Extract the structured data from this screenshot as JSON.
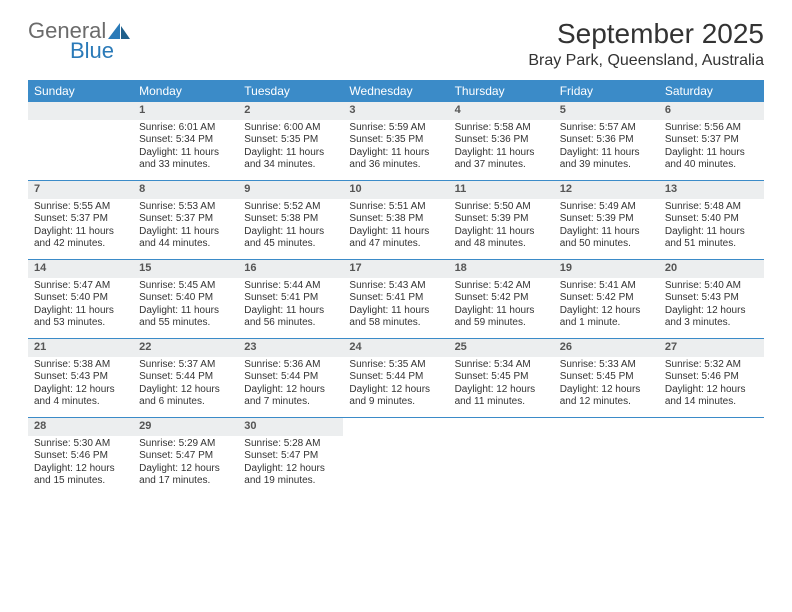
{
  "logo": {
    "main": "General",
    "sub": "Blue"
  },
  "title": "September 2025",
  "location": "Bray Park, Queensland, Australia",
  "colors": {
    "header_bg": "#3b8bc8",
    "header_text": "#ffffff",
    "num_bg": "#eceeef",
    "rule": "#3b8bc8",
    "logo_gray": "#6b6b6b",
    "logo_blue": "#2a7ab8"
  },
  "dayNames": [
    "Sunday",
    "Monday",
    "Tuesday",
    "Wednesday",
    "Thursday",
    "Friday",
    "Saturday"
  ],
  "weeks": [
    [
      {
        "n": "",
        "sr": "",
        "ss": "",
        "dl": ""
      },
      {
        "n": "1",
        "sr": "Sunrise: 6:01 AM",
        "ss": "Sunset: 5:34 PM",
        "dl": "Daylight: 11 hours and 33 minutes."
      },
      {
        "n": "2",
        "sr": "Sunrise: 6:00 AM",
        "ss": "Sunset: 5:35 PM",
        "dl": "Daylight: 11 hours and 34 minutes."
      },
      {
        "n": "3",
        "sr": "Sunrise: 5:59 AM",
        "ss": "Sunset: 5:35 PM",
        "dl": "Daylight: 11 hours and 36 minutes."
      },
      {
        "n": "4",
        "sr": "Sunrise: 5:58 AM",
        "ss": "Sunset: 5:36 PM",
        "dl": "Daylight: 11 hours and 37 minutes."
      },
      {
        "n": "5",
        "sr": "Sunrise: 5:57 AM",
        "ss": "Sunset: 5:36 PM",
        "dl": "Daylight: 11 hours and 39 minutes."
      },
      {
        "n": "6",
        "sr": "Sunrise: 5:56 AM",
        "ss": "Sunset: 5:37 PM",
        "dl": "Daylight: 11 hours and 40 minutes."
      }
    ],
    [
      {
        "n": "7",
        "sr": "Sunrise: 5:55 AM",
        "ss": "Sunset: 5:37 PM",
        "dl": "Daylight: 11 hours and 42 minutes."
      },
      {
        "n": "8",
        "sr": "Sunrise: 5:53 AM",
        "ss": "Sunset: 5:37 PM",
        "dl": "Daylight: 11 hours and 44 minutes."
      },
      {
        "n": "9",
        "sr": "Sunrise: 5:52 AM",
        "ss": "Sunset: 5:38 PM",
        "dl": "Daylight: 11 hours and 45 minutes."
      },
      {
        "n": "10",
        "sr": "Sunrise: 5:51 AM",
        "ss": "Sunset: 5:38 PM",
        "dl": "Daylight: 11 hours and 47 minutes."
      },
      {
        "n": "11",
        "sr": "Sunrise: 5:50 AM",
        "ss": "Sunset: 5:39 PM",
        "dl": "Daylight: 11 hours and 48 minutes."
      },
      {
        "n": "12",
        "sr": "Sunrise: 5:49 AM",
        "ss": "Sunset: 5:39 PM",
        "dl": "Daylight: 11 hours and 50 minutes."
      },
      {
        "n": "13",
        "sr": "Sunrise: 5:48 AM",
        "ss": "Sunset: 5:40 PM",
        "dl": "Daylight: 11 hours and 51 minutes."
      }
    ],
    [
      {
        "n": "14",
        "sr": "Sunrise: 5:47 AM",
        "ss": "Sunset: 5:40 PM",
        "dl": "Daylight: 11 hours and 53 minutes."
      },
      {
        "n": "15",
        "sr": "Sunrise: 5:45 AM",
        "ss": "Sunset: 5:40 PM",
        "dl": "Daylight: 11 hours and 55 minutes."
      },
      {
        "n": "16",
        "sr": "Sunrise: 5:44 AM",
        "ss": "Sunset: 5:41 PM",
        "dl": "Daylight: 11 hours and 56 minutes."
      },
      {
        "n": "17",
        "sr": "Sunrise: 5:43 AM",
        "ss": "Sunset: 5:41 PM",
        "dl": "Daylight: 11 hours and 58 minutes."
      },
      {
        "n": "18",
        "sr": "Sunrise: 5:42 AM",
        "ss": "Sunset: 5:42 PM",
        "dl": "Daylight: 11 hours and 59 minutes."
      },
      {
        "n": "19",
        "sr": "Sunrise: 5:41 AM",
        "ss": "Sunset: 5:42 PM",
        "dl": "Daylight: 12 hours and 1 minute."
      },
      {
        "n": "20",
        "sr": "Sunrise: 5:40 AM",
        "ss": "Sunset: 5:43 PM",
        "dl": "Daylight: 12 hours and 3 minutes."
      }
    ],
    [
      {
        "n": "21",
        "sr": "Sunrise: 5:38 AM",
        "ss": "Sunset: 5:43 PM",
        "dl": "Daylight: 12 hours and 4 minutes."
      },
      {
        "n": "22",
        "sr": "Sunrise: 5:37 AM",
        "ss": "Sunset: 5:44 PM",
        "dl": "Daylight: 12 hours and 6 minutes."
      },
      {
        "n": "23",
        "sr": "Sunrise: 5:36 AM",
        "ss": "Sunset: 5:44 PM",
        "dl": "Daylight: 12 hours and 7 minutes."
      },
      {
        "n": "24",
        "sr": "Sunrise: 5:35 AM",
        "ss": "Sunset: 5:44 PM",
        "dl": "Daylight: 12 hours and 9 minutes."
      },
      {
        "n": "25",
        "sr": "Sunrise: 5:34 AM",
        "ss": "Sunset: 5:45 PM",
        "dl": "Daylight: 12 hours and 11 minutes."
      },
      {
        "n": "26",
        "sr": "Sunrise: 5:33 AM",
        "ss": "Sunset: 5:45 PM",
        "dl": "Daylight: 12 hours and 12 minutes."
      },
      {
        "n": "27",
        "sr": "Sunrise: 5:32 AM",
        "ss": "Sunset: 5:46 PM",
        "dl": "Daylight: 12 hours and 14 minutes."
      }
    ],
    [
      {
        "n": "28",
        "sr": "Sunrise: 5:30 AM",
        "ss": "Sunset: 5:46 PM",
        "dl": "Daylight: 12 hours and 15 minutes."
      },
      {
        "n": "29",
        "sr": "Sunrise: 5:29 AM",
        "ss": "Sunset: 5:47 PM",
        "dl": "Daylight: 12 hours and 17 minutes."
      },
      {
        "n": "30",
        "sr": "Sunrise: 5:28 AM",
        "ss": "Sunset: 5:47 PM",
        "dl": "Daylight: 12 hours and 19 minutes."
      },
      {
        "n": "",
        "sr": "",
        "ss": "",
        "dl": ""
      },
      {
        "n": "",
        "sr": "",
        "ss": "",
        "dl": ""
      },
      {
        "n": "",
        "sr": "",
        "ss": "",
        "dl": ""
      },
      {
        "n": "",
        "sr": "",
        "ss": "",
        "dl": ""
      }
    ]
  ]
}
